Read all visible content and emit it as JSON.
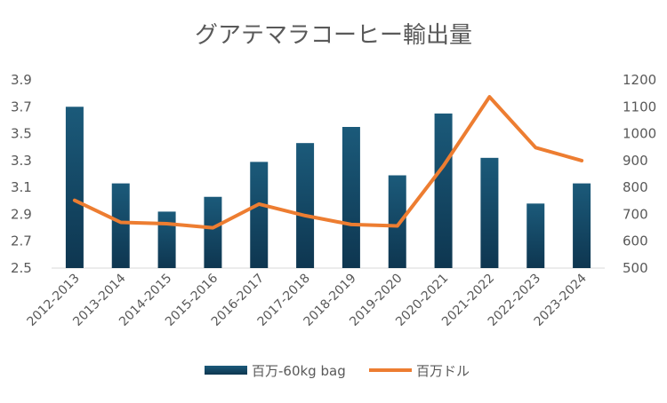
{
  "chart_data": {
    "type": "bar+line",
    "title": "グアテマラコーヒー輸出量",
    "categories": [
      "2012-2013",
      "2013-2014",
      "2014-2015",
      "2015-2016",
      "2016-2017",
      "2017-2018",
      "2018-2019",
      "2019-2020",
      "2020-2021",
      "2021-2022",
      "2022-2023",
      "2023-2024"
    ],
    "series": [
      {
        "name": "百万-60kg bag",
        "type": "bar",
        "axis": "left",
        "color": "#1f4e6b",
        "values": [
          3.7,
          3.13,
          2.92,
          3.03,
          3.29,
          3.43,
          3.55,
          3.19,
          3.65,
          3.32,
          2.98,
          3.13
        ]
      },
      {
        "name": "百万ドル",
        "type": "line",
        "axis": "right",
        "color": "#ed7d31",
        "values": [
          752,
          670,
          665,
          650,
          738,
          695,
          662,
          657,
          880,
          1137,
          948,
          900
        ]
      }
    ],
    "y_left": {
      "min": 2.5,
      "max": 3.9,
      "ticks": [
        "3.9",
        "3.7",
        "3.5",
        "3.3",
        "3.1",
        "2.9",
        "2.7",
        "2.5"
      ]
    },
    "y_right": {
      "min": 500,
      "max": 1200,
      "ticks": [
        "1200",
        "1100",
        "1000",
        "900",
        "800",
        "700",
        "600",
        "500"
      ]
    },
    "grid": false,
    "legend": "bottom"
  }
}
